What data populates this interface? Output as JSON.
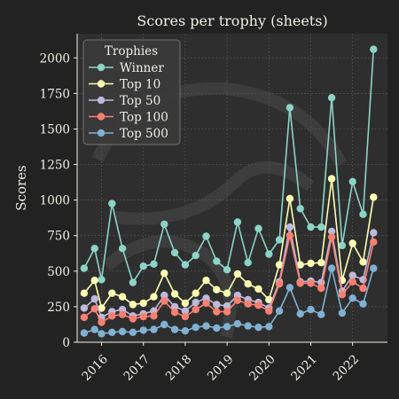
{
  "chart_data": {
    "type": "line",
    "title": "Scores per trophy (sheets)",
    "xlabel": "",
    "ylabel": "Scores",
    "legend_title": "Trophies",
    "legend_position": "top-left",
    "grid": true,
    "x_ticks": [
      "2016",
      "2017",
      "2018",
      "2019",
      "2020",
      "2021",
      "2022"
    ],
    "x_range": [
      "2015-06",
      "2022-11"
    ],
    "y_ticks": [
      0,
      250,
      500,
      750,
      1000,
      1250,
      1500,
      1750,
      2000
    ],
    "ylim": [
      0,
      2170
    ],
    "x": [
      "2015-08",
      "2015-11",
      "2016-01",
      "2016-04",
      "2016-07",
      "2016-10",
      "2017-01",
      "2017-04",
      "2017-07",
      "2017-10",
      "2018-01",
      "2018-04",
      "2018-07",
      "2018-10",
      "2019-01",
      "2019-04",
      "2019-07",
      "2019-10",
      "2020-01",
      "2020-04",
      "2020-07",
      "2020-10",
      "2021-01",
      "2021-04",
      "2021-07",
      "2021-10",
      "2022-01",
      "2022-04",
      "2022-07"
    ],
    "colors": {
      "Winner": "#8dd3c7",
      "Top 10": "#ffffb3",
      "Top 50": "#bebada",
      "Top 100": "#fb8072",
      "Top 500": "#80b1d3"
    },
    "series": [
      {
        "name": "Winner",
        "values": [
          520,
          660,
          440,
          975,
          660,
          420,
          535,
          550,
          830,
          630,
          545,
          610,
          745,
          570,
          510,
          845,
          560,
          800,
          620,
          720,
          1650,
          940,
          810,
          810,
          1720,
          680,
          1130,
          900,
          2060
        ]
      },
      {
        "name": "Top 10",
        "values": [
          345,
          435,
          240,
          345,
          320,
          265,
          275,
          320,
          485,
          340,
          275,
          345,
          435,
          370,
          345,
          480,
          410,
          375,
          300,
          545,
          1010,
          545,
          555,
          560,
          1150,
          435,
          695,
          565,
          1020
        ]
      },
      {
        "name": "Top 50",
        "values": [
          240,
          305,
          175,
          215,
          230,
          185,
          200,
          220,
          330,
          250,
          220,
          280,
          310,
          265,
          255,
          330,
          300,
          280,
          240,
          425,
          810,
          425,
          430,
          420,
          780,
          360,
          470,
          440,
          770
        ]
      },
      {
        "name": "Top 100",
        "values": [
          175,
          235,
          140,
          185,
          195,
          165,
          180,
          185,
          290,
          210,
          180,
          230,
          275,
          215,
          215,
          295,
          270,
          260,
          220,
          410,
          750,
          415,
          415,
          380,
          740,
          335,
          425,
          380,
          705
        ]
      },
      {
        "name": "Top 500",
        "values": [
          65,
          90,
          60,
          70,
          75,
          70,
          85,
          90,
          125,
          90,
          80,
          105,
          115,
          100,
          110,
          130,
          115,
          105,
          110,
          220,
          385,
          200,
          230,
          195,
          520,
          205,
          310,
          270,
          520
        ]
      }
    ]
  }
}
